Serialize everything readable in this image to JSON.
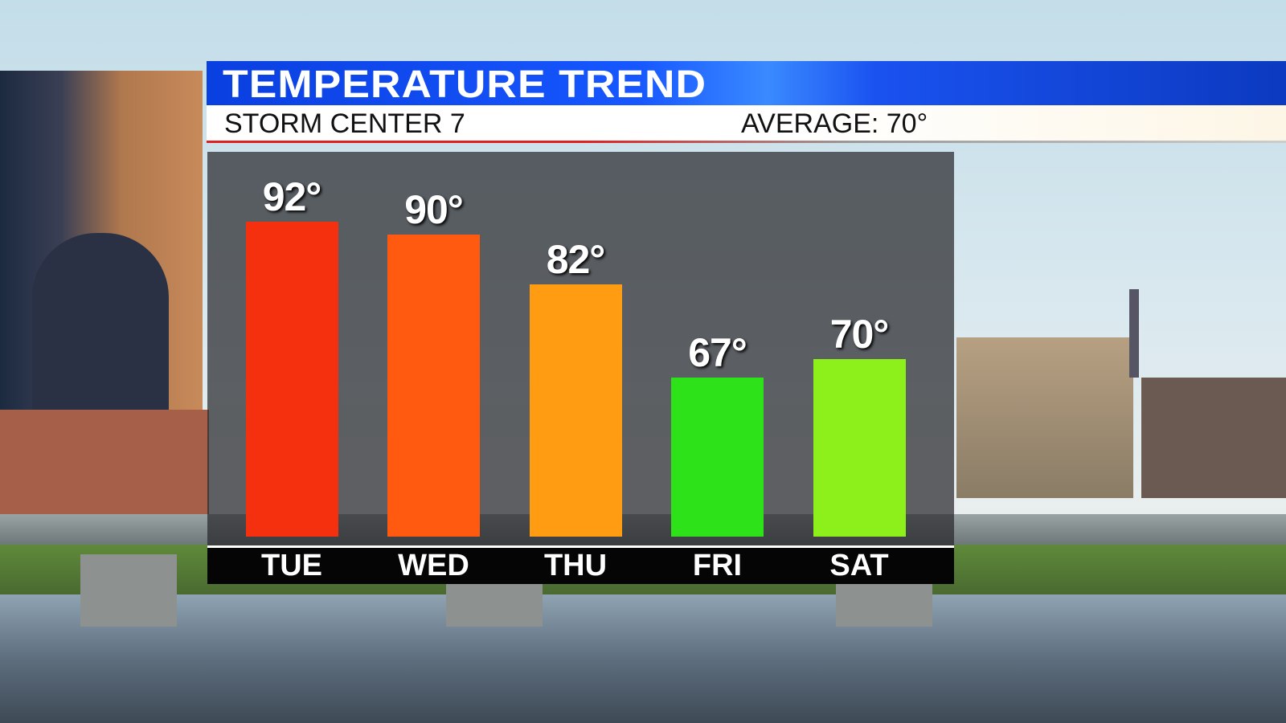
{
  "header": {
    "title": "TEMPERATURE TREND",
    "station": "STORM CENTER 7",
    "average": "AVERAGE: 70°"
  },
  "chart_data": {
    "type": "bar",
    "title": "TEMPERATURE TREND",
    "categories": [
      "TUE",
      "WED",
      "THU",
      "FRI",
      "SAT"
    ],
    "values": [
      92,
      90,
      82,
      67,
      70
    ],
    "value_labels": [
      "92°",
      "90°",
      "82°",
      "67°",
      "70°"
    ],
    "colors": [
      "#f5300f",
      "#ff5a10",
      "#ff9c12",
      "#2ee21a",
      "#8ef01a"
    ],
    "unit": "°",
    "ylim": [
      41.5,
      100
    ],
    "grid": false
  }
}
